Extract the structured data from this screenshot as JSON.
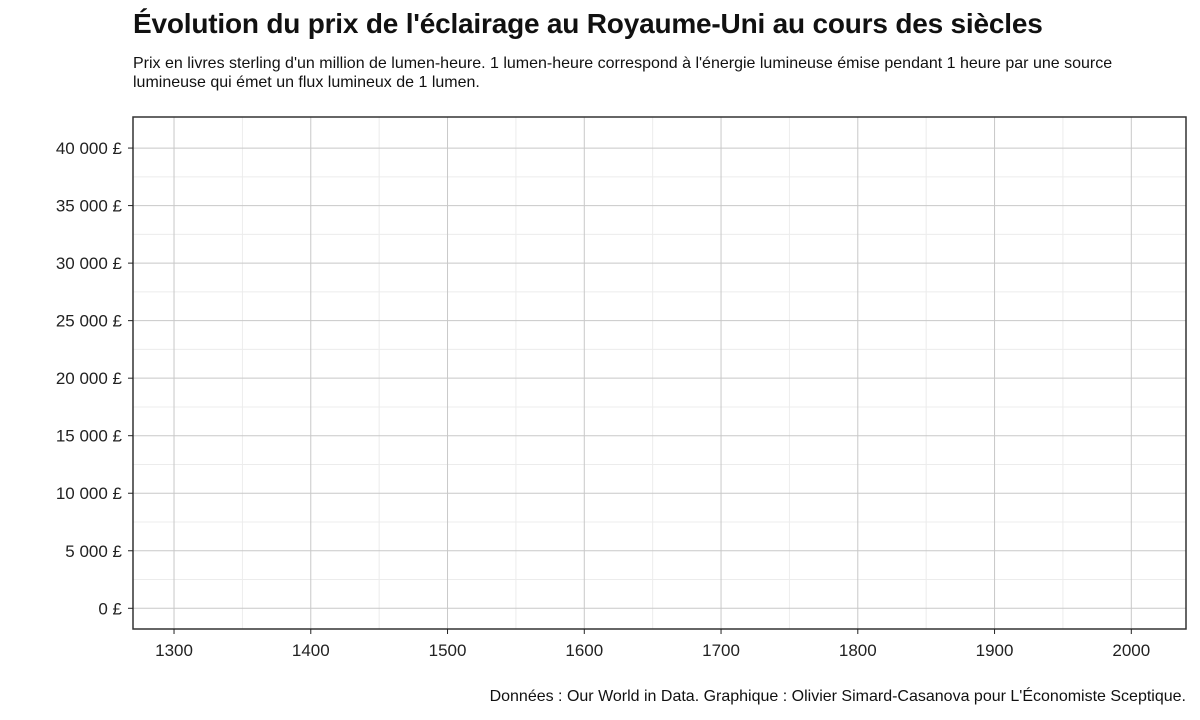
{
  "chart_data": {
    "type": "line",
    "title": "Évolution du prix de l'éclairage au Royaume-Uni au cours des siècles",
    "subtitle": "Prix en livres sterling d'un million de lumen-heure. 1 lumen-heure correspond à l'énergie lumineuse émise pendant 1 heure par une source lumineuse qui émet un flux lumineux de 1 lumen.",
    "caption": "Données : Our World in Data. Graphique : Olivier Simard-Casanova pour L'Économiste Sceptique.",
    "xlabel": "",
    "ylabel": "",
    "xlim": [
      1270,
      2040
    ],
    "ylim": [
      -1800,
      42700
    ],
    "x_ticks": [
      1300,
      1400,
      1500,
      1600,
      1700,
      1800,
      1900,
      2000
    ],
    "x_tick_labels": [
      "1300",
      "1400",
      "1500",
      "1600",
      "1700",
      "1800",
      "1900",
      "2000"
    ],
    "x_minor_ticks": [
      1350,
      1450,
      1550,
      1650,
      1750,
      1850,
      1950
    ],
    "y_ticks": [
      0,
      5000,
      10000,
      15000,
      20000,
      25000,
      30000,
      35000,
      40000
    ],
    "y_tick_labels": [
      "0 £",
      "5 000 £",
      "10 000 £",
      "15 000 £",
      "20 000 £",
      "25 000 £",
      "30 000 £",
      "35 000 £",
      "40 000 £"
    ],
    "y_minor_ticks": [
      2500,
      7500,
      12500,
      17500,
      22500,
      27500,
      32500,
      37500
    ],
    "grid": true,
    "series": []
  },
  "colors": {
    "grid_major": "#c8c8c8",
    "grid_minor": "#ececec",
    "axis": "#222222",
    "panel_border": "#333333"
  }
}
